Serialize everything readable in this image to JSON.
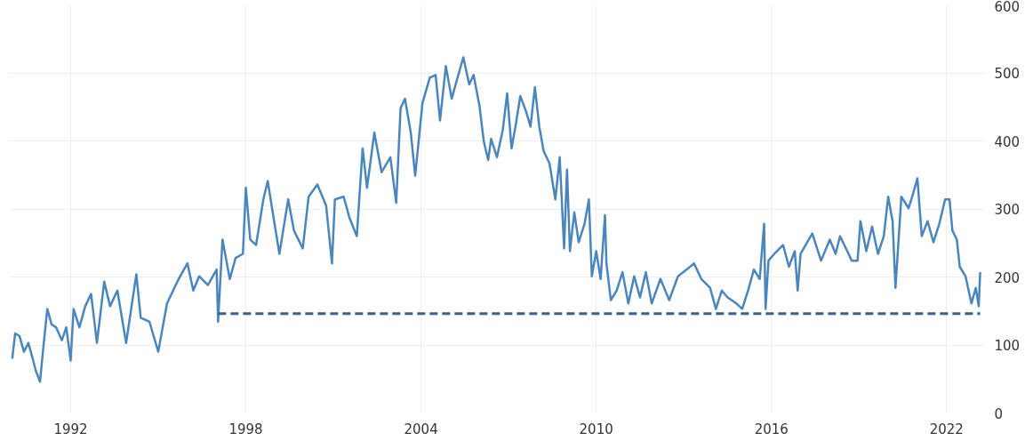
{
  "chart_data": {
    "type": "line",
    "xlim": [
      1989.9,
      2023.3
    ],
    "xticks": [
      1992,
      1998,
      2004,
      2010,
      2016,
      2022
    ],
    "ylim": [
      0,
      600
    ],
    "yticks": [
      0,
      100,
      200,
      300,
      400,
      500,
      600
    ],
    "grid": true,
    "series": [
      {
        "color": "#4a86bd",
        "line_style": "solid",
        "x": [
          1990.0,
          1990.1,
          1990.25,
          1990.4,
          1990.55,
          1990.7,
          1990.8,
          1990.95,
          1991.05,
          1991.2,
          1991.35,
          1991.5,
          1991.7,
          1991.85,
          1992.0,
          1992.1,
          1992.3,
          1992.5,
          1992.7,
          1992.9,
          1993.15,
          1993.35,
          1993.6,
          1993.9,
          1994.25,
          1994.4,
          1994.7,
          1995.0,
          1995.3,
          1995.7,
          1996.0,
          1996.2,
          1996.4,
          1996.7,
          1997.0,
          1997.05,
          1997.2,
          1997.45,
          1997.65,
          1997.9,
          1998.0,
          1998.15,
          1998.35,
          1998.6,
          1998.75,
          1998.95,
          1999.15,
          1999.45,
          1999.65,
          1999.95,
          2000.15,
          2000.45,
          2000.75,
          2000.95,
          2001.05,
          2001.35,
          2001.55,
          2001.8,
          2002.0,
          2002.15,
          2002.4,
          2002.65,
          2002.95,
          2003.15,
          2003.3,
          2003.45,
          2003.65,
          2003.8,
          2004.05,
          2004.3,
          2004.5,
          2004.65,
          2004.85,
          2005.05,
          2005.25,
          2005.45,
          2005.65,
          2005.8,
          2006.0,
          2006.15,
          2006.3,
          2006.4,
          2006.6,
          2006.8,
          2006.95,
          2007.1,
          2007.25,
          2007.4,
          2007.6,
          2007.75,
          2007.9,
          2008.05,
          2008.2,
          2008.4,
          2008.6,
          2008.75,
          2008.9,
          2009.0,
          2009.1,
          2009.25,
          2009.4,
          2009.6,
          2009.75,
          2009.85,
          2010.0,
          2010.15,
          2010.3,
          2010.35,
          2010.5,
          2010.7,
          2010.9,
          2011.1,
          2011.3,
          2011.5,
          2011.7,
          2011.9,
          2012.2,
          2012.5,
          2012.8,
          2013.1,
          2013.35,
          2013.6,
          2013.9,
          2014.1,
          2014.3,
          2014.5,
          2014.8,
          2015.0,
          2015.2,
          2015.4,
          2015.6,
          2015.75,
          2015.8,
          2015.9,
          2016.1,
          2016.4,
          2016.6,
          2016.8,
          2016.9,
          2017.0,
          2017.4,
          2017.7,
          2018.0,
          2018.2,
          2018.35,
          2018.6,
          2018.75,
          2018.95,
          2019.05,
          2019.25,
          2019.45,
          2019.65,
          2019.85,
          2020.0,
          2020.15,
          2020.25,
          2020.45,
          2020.7,
          2020.85,
          2021.0,
          2021.15,
          2021.35,
          2021.55,
          2021.75,
          2021.95,
          2022.1,
          2022.2,
          2022.35,
          2022.45,
          2022.65,
          2022.85,
          2023.0,
          2023.1,
          2023.15
        ],
        "values": [
          80,
          117,
          113,
          90,
          103,
          80,
          63,
          46,
          90,
          153,
          130,
          126,
          107,
          126,
          77,
          153,
          126,
          157,
          175,
          103,
          193,
          157,
          180,
          103,
          204,
          140,
          134,
          90,
          161,
          197,
          220,
          180,
          201,
          188,
          211,
          134,
          255,
          197,
          228,
          234,
          331,
          255,
          247,
          314,
          341,
          287,
          234,
          314,
          268,
          242,
          318,
          336,
          305,
          220,
          314,
          318,
          287,
          260,
          389,
          331,
          412,
          354,
          376,
          309,
          448,
          462,
          412,
          349,
          456,
          493,
          497,
          430,
          510,
          462,
          493,
          523,
          483,
          497,
          452,
          399,
          372,
          403,
          376,
          416,
          470,
          389,
          425,
          466,
          443,
          421,
          479,
          421,
          385,
          367,
          314,
          376,
          242,
          358,
          238,
          295,
          251,
          278,
          314,
          201,
          238,
          197,
          291,
          220,
          166,
          180,
          207,
          161,
          201,
          170,
          207,
          161,
          197,
          166,
          201,
          211,
          220,
          197,
          184,
          153,
          180,
          170,
          161,
          153,
          180,
          211,
          197,
          278,
          153,
          224,
          234,
          247,
          215,
          238,
          180,
          234,
          264,
          224,
          255,
          234,
          260,
          238,
          224,
          224,
          282,
          238,
          274,
          234,
          260,
          318,
          282,
          184,
          318,
          301,
          322,
          345,
          260,
          282,
          251,
          278,
          314,
          314,
          268,
          255,
          215,
          201,
          161,
          184,
          157,
          207
        ]
      },
      {
        "color": "#3e5f8a",
        "line_style": "dashed",
        "x": [
          1997.05,
          2023.15
        ],
        "values": [
          146,
          146
        ]
      }
    ]
  }
}
